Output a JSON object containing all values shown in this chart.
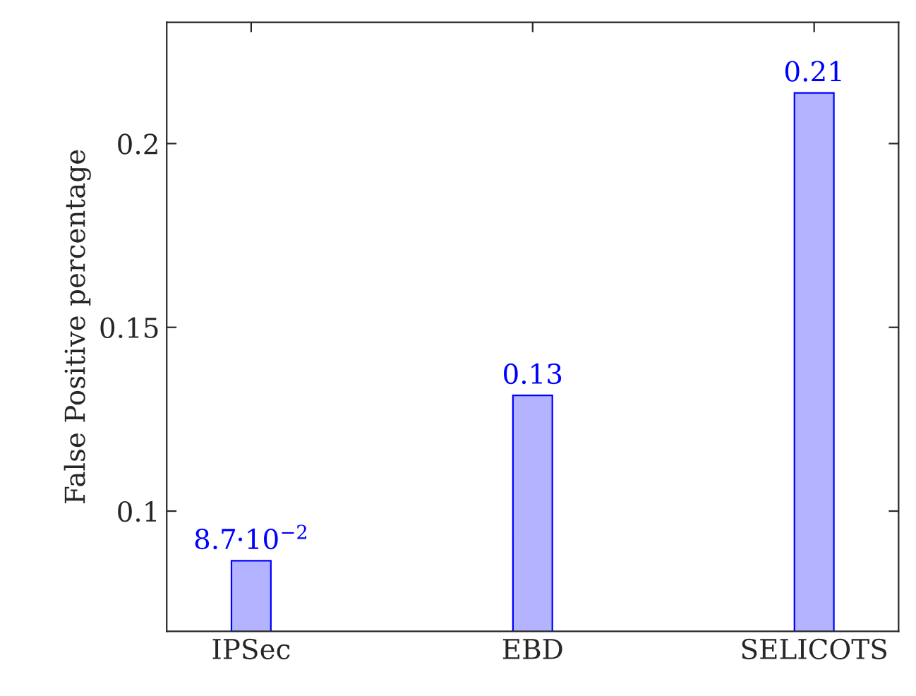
{
  "chart_data": {
    "type": "bar",
    "ylabel": "False Positive percentage",
    "categories": [
      "IPSec",
      "EBD",
      "SELICOTS"
    ],
    "values": [
      0.0865,
      0.1315,
      0.2138
    ],
    "value_labels": [
      "8.7·10$^{−2}$",
      "0.13",
      "0.21"
    ],
    "color": "#b3b3ff",
    "ylim": [
      0.0673,
      0.233
    ],
    "yticks": [
      0.1,
      0.15,
      0.2
    ],
    "grid": false,
    "legend": false
  }
}
